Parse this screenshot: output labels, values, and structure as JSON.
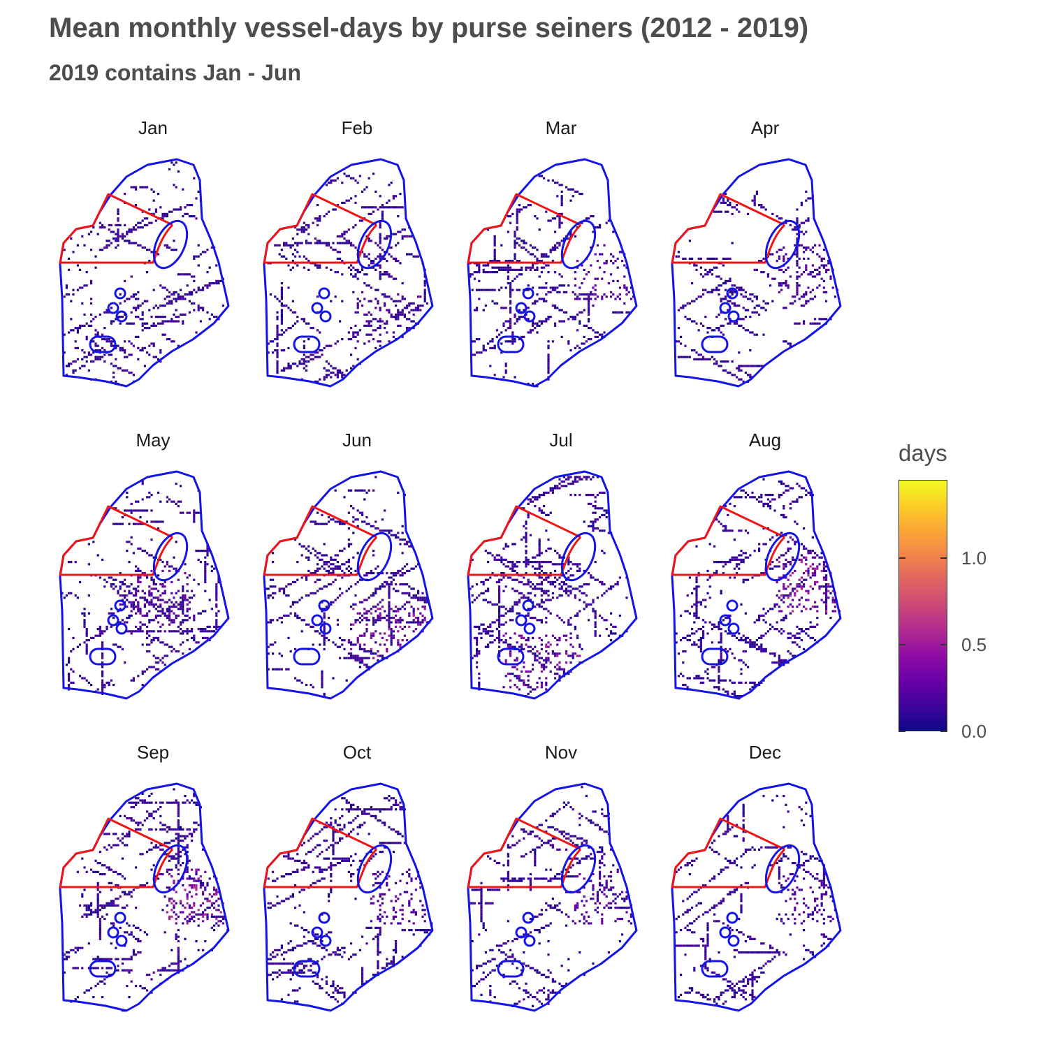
{
  "title": "Mean monthly vessel-days by purse seiners (2012 - 2019)",
  "subtitle": "2019 contains Jan - Jun",
  "chart_data": {
    "type": "heatmap",
    "panels": [
      {
        "month": "Jan",
        "intensity": 0.1,
        "hotspot": "none"
      },
      {
        "month": "Feb",
        "intensity": 0.15,
        "hotspot": "south-east"
      },
      {
        "month": "Mar",
        "intensity": 0.2,
        "hotspot": "east"
      },
      {
        "month": "Apr",
        "intensity": 0.15,
        "hotspot": "east"
      },
      {
        "month": "May",
        "intensity": 0.25,
        "hotspot": "central"
      },
      {
        "month": "Jun",
        "intensity": 0.4,
        "hotspot": "south-east"
      },
      {
        "month": "Jul",
        "intensity": 0.35,
        "hotspot": "south"
      },
      {
        "month": "Aug",
        "intensity": 0.45,
        "hotspot": "east"
      },
      {
        "month": "Sep",
        "intensity": 0.45,
        "hotspot": "east"
      },
      {
        "month": "Oct",
        "intensity": 0.2,
        "hotspot": "east"
      },
      {
        "month": "Nov",
        "intensity": 0.2,
        "hotspot": "east"
      },
      {
        "month": "Dec",
        "intensity": 0.15,
        "hotspot": "east"
      }
    ],
    "legend": {
      "title": "days",
      "ticks": [
        "0.0",
        "0.5",
        "1.0"
      ],
      "tick_values": [
        0.0,
        0.5,
        1.0
      ],
      "min": 0.0,
      "max": 1.45,
      "colormap": "plasma",
      "placement": "right"
    },
    "boundary_color": "#1414e6",
    "closure_color": "#f01414"
  }
}
